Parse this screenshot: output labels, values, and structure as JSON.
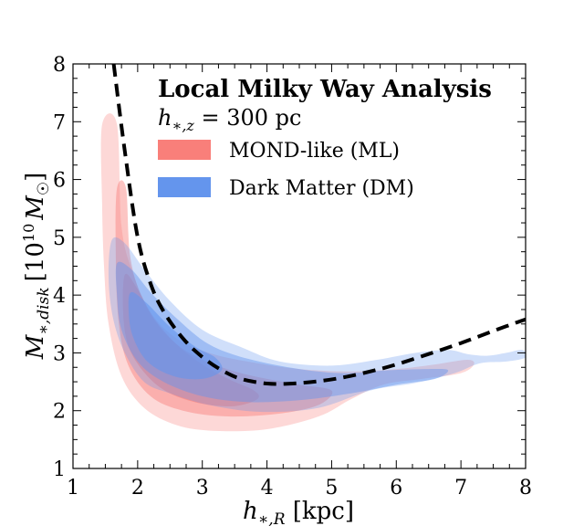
{
  "chart_data": {
    "type": "contour",
    "title": "Local Milky Way Analysis",
    "subtitle": "h∗,z = 300 pc",
    "subtitle_parts": {
      "var": "h",
      "sub": "∗,z",
      "rest": " = 300 pc"
    },
    "xlabel": "h∗,R [kpc]",
    "xlabel_parts": {
      "var": "h",
      "sub": "∗,R",
      "rest": " [kpc]"
    },
    "ylabel": "M∗,disk [10^10 M☉]",
    "ylabel_parts": {
      "var": "M",
      "sub": "∗,disk",
      "pre": "[10",
      "sup": "10",
      "unit": "M",
      "unit_sub": "☉",
      "post": "]"
    },
    "xlim": [
      1,
      8
    ],
    "ylim": [
      1,
      8
    ],
    "xticks": [
      1,
      2,
      3,
      4,
      5,
      6,
      7,
      8
    ],
    "yticks": [
      1,
      2,
      3,
      4,
      5,
      6,
      7,
      8
    ],
    "legend_position": "top-right",
    "series": [
      {
        "name": "MOND-like (ML)",
        "color": "#f97f7a",
        "contours": [
          {
            "level": "outer",
            "opacity": 0.3,
            "points": [
              [
                1.45,
                6.95
              ],
              [
                1.68,
                6.95
              ],
              [
                1.75,
                5.2
              ],
              [
                1.92,
                4.4
              ],
              [
                2.2,
                3.7
              ],
              [
                2.6,
                3.25
              ],
              [
                3.1,
                3.0
              ],
              [
                3.7,
                2.85
              ],
              [
                4.5,
                2.72
              ],
              [
                5.3,
                2.68
              ],
              [
                6.0,
                2.72
              ],
              [
                6.6,
                2.8
              ],
              [
                7.1,
                2.88
              ],
              [
                7.2,
                2.8
              ],
              [
                7.0,
                2.65
              ],
              [
                6.4,
                2.55
              ],
              [
                5.8,
                2.45
              ],
              [
                5.3,
                2.2
              ],
              [
                4.8,
                1.9
              ],
              [
                4.0,
                1.68
              ],
              [
                3.2,
                1.65
              ],
              [
                2.6,
                1.75
              ],
              [
                2.1,
                2.05
              ],
              [
                1.75,
                2.6
              ],
              [
                1.55,
                3.5
              ],
              [
                1.48,
                4.5
              ],
              [
                1.45,
                5.6
              ]
            ]
          },
          {
            "level": "middle",
            "opacity": 0.45,
            "points": [
              [
                1.68,
                5.85
              ],
              [
                1.82,
                5.85
              ],
              [
                1.88,
                4.7
              ],
              [
                2.05,
                4.0
              ],
              [
                2.3,
                3.5
              ],
              [
                2.6,
                3.15
              ],
              [
                3.0,
                2.88
              ],
              [
                3.5,
                2.68
              ],
              [
                4.0,
                2.55
              ],
              [
                4.5,
                2.45
              ],
              [
                5.0,
                2.35
              ],
              [
                4.8,
                2.1
              ],
              [
                4.2,
                1.95
              ],
              [
                3.4,
                1.9
              ],
              [
                2.7,
                2.0
              ],
              [
                2.2,
                2.25
              ],
              [
                1.85,
                2.8
              ],
              [
                1.7,
                3.6
              ],
              [
                1.66,
                4.8
              ]
            ]
          },
          {
            "level": "inner",
            "opacity": 0.6,
            "points": [
              [
                1.8,
                4.35
              ],
              [
                2.0,
                4.1
              ],
              [
                2.25,
                3.6
              ],
              [
                2.6,
                3.15
              ],
              [
                3.0,
                2.8
              ],
              [
                3.4,
                2.55
              ],
              [
                3.8,
                2.35
              ],
              [
                3.85,
                2.2
              ],
              [
                3.5,
                2.08
              ],
              [
                3.0,
                2.12
              ],
              [
                2.5,
                2.3
              ],
              [
                2.15,
                2.6
              ],
              [
                1.88,
                3.05
              ],
              [
                1.78,
                3.6
              ]
            ]
          }
        ]
      },
      {
        "name": "Dark Matter (DM)",
        "color": "#6495ed",
        "contours": [
          {
            "level": "outer",
            "opacity": 0.3,
            "points": [
              [
                1.6,
                4.95
              ],
              [
                1.8,
                4.9
              ],
              [
                2.1,
                4.45
              ],
              [
                2.5,
                3.9
              ],
              [
                3.0,
                3.4
              ],
              [
                3.6,
                3.1
              ],
              [
                4.2,
                2.85
              ],
              [
                5.0,
                2.78
              ],
              [
                5.7,
                2.88
              ],
              [
                6.3,
                3.0
              ],
              [
                6.8,
                3.05
              ],
              [
                7.1,
                2.98
              ],
              [
                7.4,
                2.95
              ],
              [
                7.7,
                3.0
              ],
              [
                7.95,
                3.05
              ],
              [
                8.0,
                2.92
              ],
              [
                7.7,
                2.85
              ],
              [
                7.3,
                2.82
              ],
              [
                6.9,
                2.65
              ],
              [
                6.3,
                2.48
              ],
              [
                5.6,
                2.35
              ],
              [
                4.8,
                2.05
              ],
              [
                3.9,
                1.98
              ],
              [
                3.1,
                2.1
              ],
              [
                2.5,
                2.3
              ],
              [
                2.1,
                2.5
              ],
              [
                1.8,
                3.0
              ],
              [
                1.62,
                3.6
              ],
              [
                1.55,
                4.3
              ]
            ]
          },
          {
            "level": "middle",
            "opacity": 0.45,
            "points": [
              [
                1.68,
                4.55
              ],
              [
                1.9,
                4.45
              ],
              [
                2.2,
                4.05
              ],
              [
                2.6,
                3.6
              ],
              [
                3.1,
                3.15
              ],
              [
                3.7,
                2.9
              ],
              [
                4.5,
                2.72
              ],
              [
                5.2,
                2.65
              ],
              [
                5.9,
                2.7
              ],
              [
                6.5,
                2.72
              ],
              [
                6.8,
                2.7
              ],
              [
                6.6,
                2.55
              ],
              [
                6.0,
                2.45
              ],
              [
                5.3,
                2.3
              ],
              [
                4.5,
                2.18
              ],
              [
                3.7,
                2.15
              ],
              [
                3.0,
                2.25
              ],
              [
                2.4,
                2.5
              ],
              [
                2.0,
                2.85
              ],
              [
                1.75,
                3.4
              ],
              [
                1.68,
                4.0
              ]
            ]
          },
          {
            "level": "inner",
            "opacity": 0.6,
            "points": [
              [
                1.9,
                4.05
              ],
              [
                2.15,
                3.85
              ],
              [
                2.5,
                3.45
              ],
              [
                2.9,
                3.1
              ],
              [
                3.2,
                2.92
              ],
              [
                3.3,
                2.7
              ],
              [
                3.0,
                2.55
              ],
              [
                2.55,
                2.6
              ],
              [
                2.15,
                2.85
              ],
              [
                1.92,
                3.3
              ],
              [
                1.86,
                3.75
              ]
            ]
          }
        ]
      },
      {
        "name": "dashed curve",
        "color": "#000000",
        "style": "dashed",
        "x": [
          1.63,
          1.8,
          2.0,
          2.2,
          2.4,
          2.7,
          3.0,
          3.3,
          3.6,
          4.0,
          4.4,
          4.8,
          5.2,
          5.6,
          6.0,
          6.5,
          7.0,
          7.5,
          8.0
        ],
        "y": [
          8.0,
          6.5,
          5.0,
          4.2,
          3.72,
          3.25,
          2.93,
          2.7,
          2.55,
          2.47,
          2.47,
          2.51,
          2.58,
          2.68,
          2.8,
          2.98,
          3.17,
          3.38,
          3.58
        ]
      }
    ]
  }
}
